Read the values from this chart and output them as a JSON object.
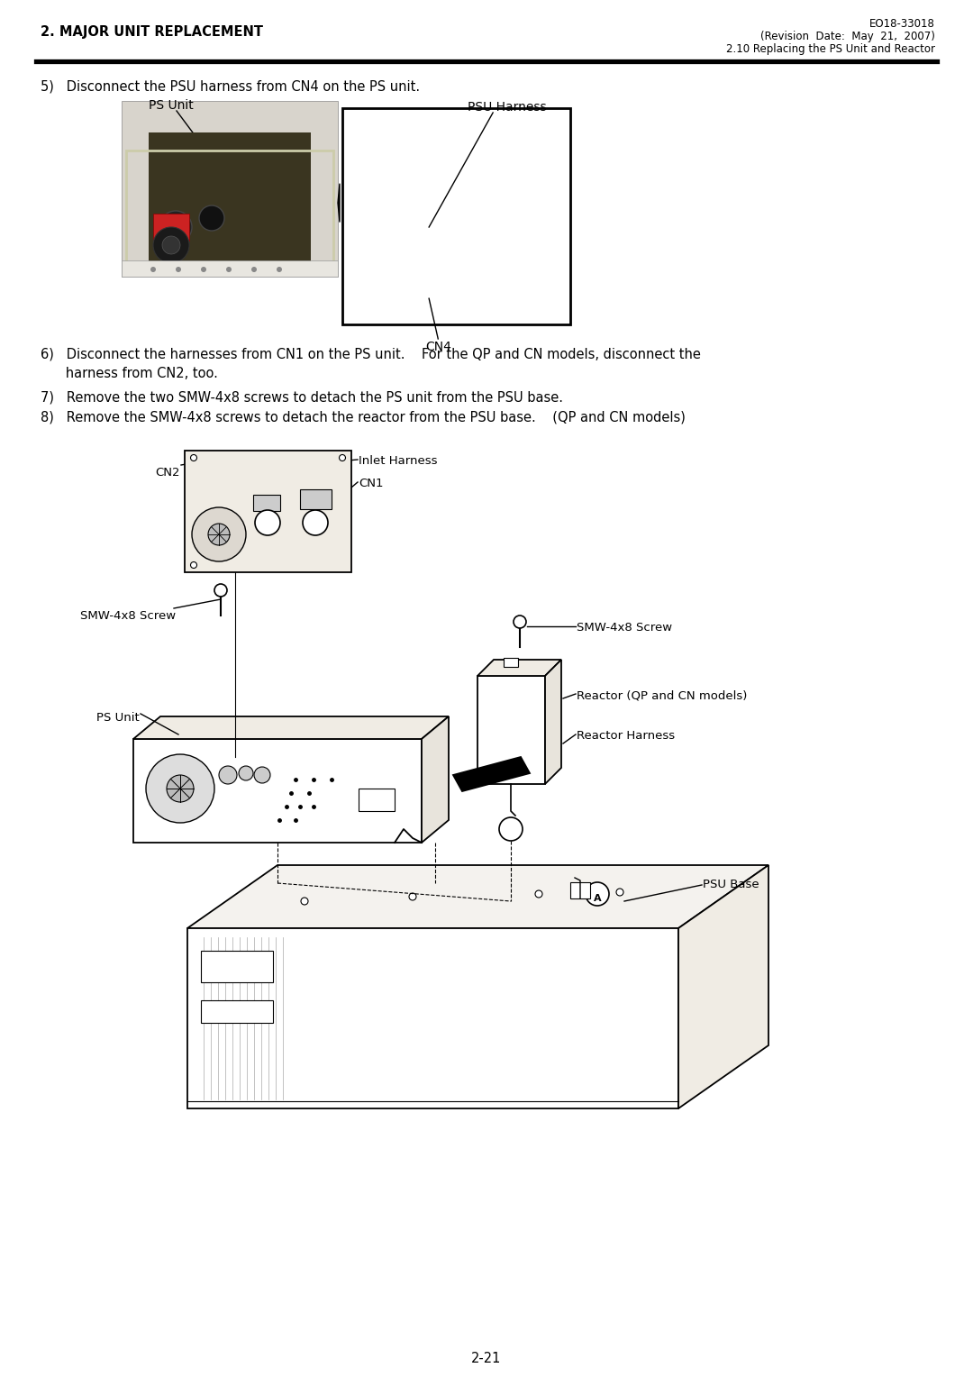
{
  "page_title_left": "2. MAJOR UNIT REPLACEMENT",
  "page_title_right_1": "EO18-33018",
  "page_title_right_2": "(Revision  Date:  May  21,  2007)",
  "page_title_right_3": "2.10 Replacing the PS Unit and Reactor",
  "step5_text": "5)   Disconnect the PSU harness from CN4 on the PS unit.",
  "step6_line1": "6)   Disconnect the harnesses from CN1 on the PS unit.    For the QP and CN models, disconnect the",
  "step6_line2": "      harness from CN2, too.",
  "step7_text": "7)   Remove the two SMW-4x8 screws to detach the PS unit from the PSU base.",
  "step8_text": "8)   Remove the SMW-4x8 screws to detach the reactor from the PSU base.    (QP and CN models)",
  "label_ps_unit_top": "PS Unit",
  "label_psu_harness": "PSU Harness",
  "label_cn4": "CN4",
  "label_cn2": "CN2",
  "label_cn1": "CN1",
  "label_inlet_harness": "Inlet Harness",
  "label_smw_screw_left": "SMW-4x8 Screw",
  "label_smw_screw_right": "SMW-4x8 Screw",
  "label_ps_unit_bottom": "PS Unit",
  "label_reactor": "Reactor (QP and CN models)",
  "label_reactor_harness": "Reactor Harness",
  "label_psu_base": "PSU Base",
  "page_number": "2-21",
  "bg_color": "#ffffff",
  "text_color": "#000000"
}
